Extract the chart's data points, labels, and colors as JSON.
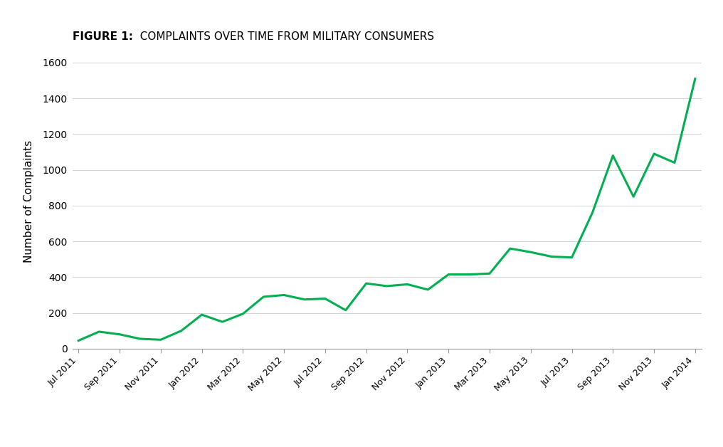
{
  "title_bold": "FIGURE 1:",
  "title_rest": "  COMPLAINTS OVER TIME FROM MILITARY CONSUMERS",
  "ylabel": "Number of Complaints",
  "line_color": "#00b050",
  "line_width": 2.2,
  "background_color": "#ffffff",
  "ylim": [
    0,
    1650
  ],
  "yticks": [
    0,
    200,
    400,
    600,
    800,
    1000,
    1200,
    1400,
    1600
  ],
  "x_labels": [
    "Jul 2011",
    "Sep 2011",
    "Nov 2011",
    "Jan 2012",
    "Mar 2012",
    "May 2012",
    "Jul 2012",
    "Sep 2012",
    "Nov 2012",
    "Jan 2013",
    "Mar 2013",
    "May 2013",
    "Jul 2013",
    "Sep 2013",
    "Nov 2013",
    "Jan 2014"
  ],
  "monthly_values": [
    45,
    95,
    80,
    55,
    50,
    100,
    190,
    150,
    195,
    290,
    300,
    275,
    280,
    215,
    365,
    350,
    360,
    330,
    415,
    415,
    420,
    560,
    540,
    515,
    510,
    760,
    1080,
    850,
    1090,
    1040,
    1510
  ]
}
